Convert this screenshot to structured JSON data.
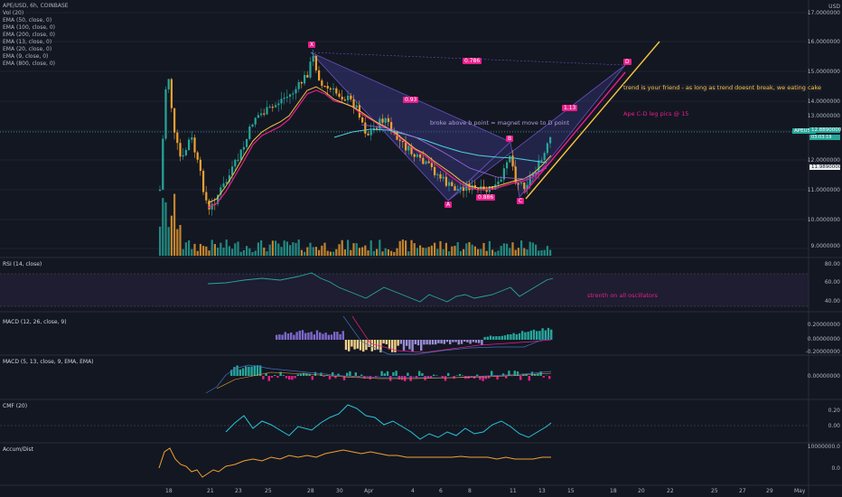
{
  "header": {
    "symbol": "APE/USD, 6h, COINBASE",
    "volume": "Vol (20)",
    "indicators": [
      "EMA (50, close, 0)",
      "EMA (100, close, 0)",
      "EMA (200, close, 0)",
      "EMA (13, close, 0)",
      "EMA (20, close, 0)",
      "EMA (9, close, 0)",
      "EMA (800, close, 0)"
    ]
  },
  "price_axis": {
    "currency": "USD",
    "ticks": [
      "17.0000000",
      "16.0000000",
      "15.0000000",
      "14.0000000",
      "13.0000000",
      "12.0000000",
      "11.0000000",
      "10.0000000",
      "9.0000000"
    ],
    "last_price_tag": "12.8890000",
    "last_price_time": "03:03:19",
    "secondary_price_tag": "11.9890000",
    "ticker_tag": "APEUSD"
  },
  "annotations": {
    "trend": "trend is your friend - as long as trend doesnt break, we eating cake",
    "ape_cd": "Ape C-D leg pics @ 15",
    "broke": "broke above b point = magnet move to D point",
    "oscillators": "strenth on all oscillators"
  },
  "pattern_labels": {
    "x": "X",
    "a": "A",
    "b": "B",
    "c": "C",
    "d": "D",
    "xb": "0.93",
    "xd": "0.786",
    "bd": "1.13",
    "ac": "0.886"
  },
  "panes": {
    "rsi": {
      "title": "RSI (14, close)",
      "ticks": [
        "80.00",
        "60.00",
        "40.00"
      ]
    },
    "macd1": {
      "title": "MACD (12, 26, close, 9)",
      "ticks": [
        "0.20000000",
        "0.00000000",
        "-0.20000000"
      ]
    },
    "macd2": {
      "title": "MACD (5, 13, close, 9, EMA, EMA)",
      "ticks": [
        "0.00000000"
      ]
    },
    "cmf": {
      "title": "CMF (20)",
      "ticks": [
        "0.20",
        "0.00"
      ]
    },
    "accum": {
      "title": "Accum/Dist",
      "ticks": [
        "10000000.0",
        "0.0"
      ]
    }
  },
  "time_axis": [
    "18",
    "21",
    "23",
    "25",
    "28",
    "30",
    "Apr",
    "4",
    "6",
    "8",
    "11",
    "13",
    "15",
    "18",
    "20",
    "22",
    "25",
    "27",
    "29",
    "May"
  ],
  "colors": {
    "up": "#26a69a",
    "down": "#f0a030",
    "magenta": "#e91e8c",
    "cyan": "#4dd0e1",
    "yellow": "#f6c343",
    "pattern": "#6a4fbf"
  }
}
